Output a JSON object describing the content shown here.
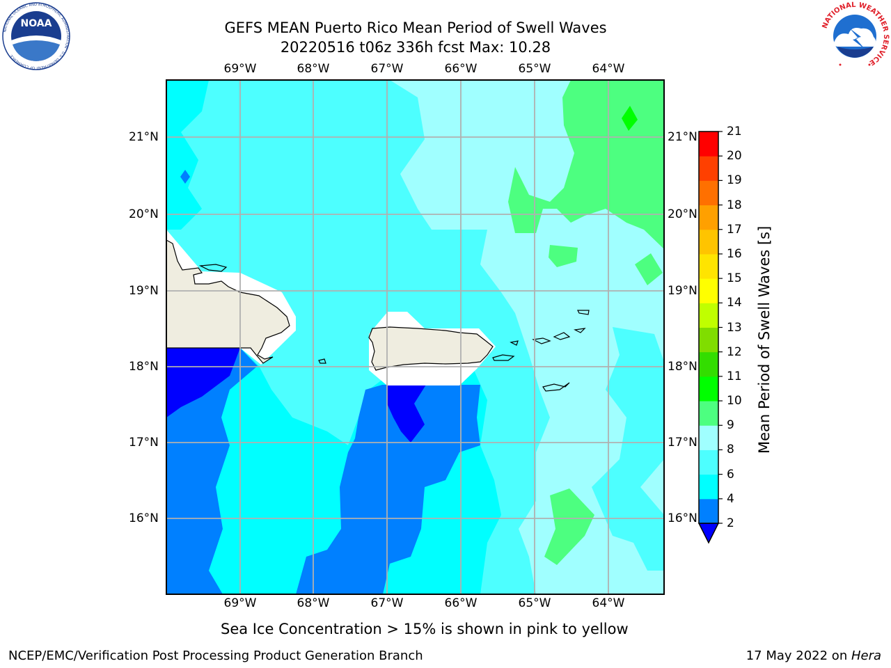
{
  "header": {
    "title_line1": "GEFS MEAN Puerto Rico Mean Period of Swell Waves",
    "title_line2": "20220516 t06z 336h fcst   Max: 10.28"
  },
  "logos": {
    "noaa_text": "NOAA",
    "noaa_ring_text": "NATIONAL OCEANIC AND ATMOSPHERIC ADMINISTRATION · U.S. DEPARTMENT OF COMMERCE",
    "nws_ring_text": "NATIONAL WEATHER SERVICE"
  },
  "map": {
    "lon_labels": [
      "69°W",
      "68°W",
      "67°W",
      "66°W",
      "65°W",
      "64°W"
    ],
    "lat_labels": [
      "21°N",
      "20°N",
      "19°N",
      "18°N",
      "17°N",
      "16°N"
    ],
    "gridline_color": "#b0b0b0",
    "land_color": "#efede0",
    "masked_color": "#ffffff"
  },
  "colorbar": {
    "title": "Mean Period of Swell Waves [s]",
    "levels": [
      "2",
      "4",
      "6",
      "8",
      "9",
      "10",
      "11",
      "12",
      "13",
      "14",
      "15",
      "16",
      "17",
      "18",
      "19",
      "20",
      "21"
    ],
    "colors": [
      "#0000ff",
      "#0080ff",
      "#00ffff",
      "#4dffff",
      "#a0ffff",
      "#4dff80",
      "#00ff00",
      "#33dd00",
      "#80dd00",
      "#c0ff00",
      "#ffff00",
      "#ffe400",
      "#ffc400",
      "#ffa000",
      "#ff7000",
      "#ff4000",
      "#ff0000"
    ]
  },
  "chart_data": {
    "type": "heatmap",
    "title": "GEFS MEAN Puerto Rico Mean Period of Swell Waves",
    "subtitle": "20220516 t06z 336h fcst   Max: 10.28",
    "variable": "Mean Period of Swell Waves [s]",
    "max": 10.28,
    "lon_range": [
      -70.0,
      -63.3
    ],
    "lat_range": [
      15.0,
      21.75
    ],
    "levels": [
      2,
      4,
      6,
      8,
      9,
      10,
      11,
      12,
      13,
      14,
      15,
      16,
      17,
      18,
      19,
      20,
      21
    ],
    "regions": [
      {
        "period_range": [
          2,
          4
        ],
        "area": "southwest corner south of Hispaniola and immediately south of western Puerto Rico"
      },
      {
        "period_range": [
          4,
          6
        ],
        "area": "western and southern waters south of Hispaniola and Puerto Rico"
      },
      {
        "period_range": [
          6,
          8
        ],
        "area": "central waters between Hispaniola and the Virgin Islands"
      },
      {
        "period_range": [
          8,
          9
        ],
        "area": "northeastern and eastern waters"
      },
      {
        "period_range": [
          9,
          10.28
        ],
        "area": "northeast corner and small patches east of 65°W"
      }
    ]
  },
  "footer": {
    "caption": "Sea Ice Concentration > 15% is shown in pink to yellow",
    "left": "NCEP/EMC/Verification Post Processing Product Generation Branch",
    "right_prefix": "17 May 2022 on ",
    "right_machine": "Hera"
  }
}
